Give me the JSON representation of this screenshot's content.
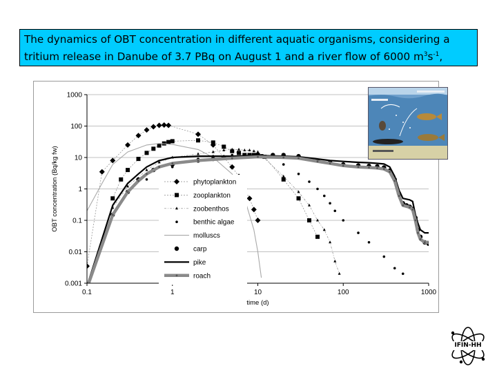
{
  "caption": {
    "line1": "The dynamics of OBT concentration in different aquatic organisms, considering a",
    "line2_pre": "tritium release in Danube of 3.7 PBq on August 1 and a river flow of 6000 m",
    "sup1": "3",
    "mid": "s",
    "sup2": "-1",
    "tail": ","
  },
  "logo_text": "IFIN-HH",
  "colors": {
    "caption_bg": "#00ccff",
    "grid": "#c0c0c0",
    "inset_water": "#4d86b8",
    "inset_sand": "#d7d1a6"
  },
  "chart_data": {
    "type": "line",
    "title": "",
    "xlabel": "time (d)",
    "ylabel": "OBT concentration (Bq/kg fw)",
    "xscale": "log",
    "yscale": "log",
    "xlim": [
      0.1,
      1000
    ],
    "ylim": [
      0.001,
      1000
    ],
    "xticks": [
      "0.1",
      "1",
      "10",
      "100",
      "1000"
    ],
    "yticks": [
      "1000",
      "100",
      "10",
      "1",
      "0.1",
      "0.01",
      "0.001"
    ],
    "grid": "horizontal",
    "legend_position": "lower-left inside",
    "series": [
      {
        "name": "phytoplankton",
        "style": "diamond markers",
        "color": "#000000",
        "points": [
          [
            0.1,
            0.0035
          ],
          [
            0.15,
            3.5
          ],
          [
            0.2,
            8
          ],
          [
            0.3,
            25
          ],
          [
            0.4,
            50
          ],
          [
            0.5,
            75
          ],
          [
            0.6,
            95
          ],
          [
            0.7,
            105
          ],
          [
            0.8,
            108
          ],
          [
            0.9,
            105
          ],
          [
            2,
            55
          ],
          [
            3,
            25
          ],
          [
            4,
            10
          ],
          [
            5,
            5
          ],
          [
            6,
            2.5
          ],
          [
            7,
            1
          ],
          [
            8,
            0.5
          ],
          [
            9,
            0.22
          ],
          [
            10,
            0.1
          ]
        ]
      },
      {
        "name": "zooplankton",
        "style": "square markers",
        "color": "#000000",
        "points": [
          [
            0.2,
            0.5
          ],
          [
            0.25,
            2
          ],
          [
            0.3,
            4
          ],
          [
            0.4,
            9
          ],
          [
            0.5,
            14
          ],
          [
            0.6,
            19
          ],
          [
            0.7,
            24
          ],
          [
            0.8,
            28
          ],
          [
            0.9,
            31
          ],
          [
            1,
            33
          ],
          [
            2,
            35
          ],
          [
            3,
            30
          ],
          [
            4,
            22
          ],
          [
            5,
            16
          ],
          [
            6,
            14
          ],
          [
            7,
            12
          ],
          [
            8,
            12
          ],
          [
            9,
            12
          ],
          [
            10,
            12
          ],
          [
            11,
            11
          ],
          [
            12,
            10.5
          ],
          [
            20,
            2
          ],
          [
            30,
            0.5
          ],
          [
            40,
            0.1
          ],
          [
            50,
            0.03
          ]
        ]
      },
      {
        "name": "zoobenthos",
        "style": "small triangle markers",
        "color": "#000000",
        "points": [
          [
            0.2,
            0.25
          ],
          [
            0.3,
            1.2
          ],
          [
            0.5,
            4
          ],
          [
            0.7,
            7
          ],
          [
            1,
            10
          ],
          [
            2,
            13
          ],
          [
            3,
            15
          ],
          [
            4,
            17
          ],
          [
            5,
            18
          ],
          [
            6,
            18
          ],
          [
            7,
            17
          ],
          [
            8,
            17
          ],
          [
            9,
            16
          ],
          [
            10,
            15
          ],
          [
            20,
            2.5
          ],
          [
            30,
            0.8
          ],
          [
            40,
            0.3
          ],
          [
            50,
            0.1
          ],
          [
            60,
            0.05
          ],
          [
            70,
            0.02
          ],
          [
            80,
            0.005
          ],
          [
            90,
            0.002
          ]
        ]
      },
      {
        "name": "benthic algae",
        "style": "dot markers",
        "color": "#000000",
        "points": [
          [
            0.5,
            2
          ],
          [
            1,
            5
          ],
          [
            2,
            9
          ],
          [
            3,
            11
          ],
          [
            5,
            12
          ],
          [
            7,
            12
          ],
          [
            10,
            12
          ],
          [
            20,
            6
          ],
          [
            30,
            3
          ],
          [
            40,
            1.7
          ],
          [
            50,
            1
          ],
          [
            60,
            0.6
          ],
          [
            70,
            0.35
          ],
          [
            80,
            0.2
          ],
          [
            100,
            0.1
          ],
          [
            150,
            0.04
          ],
          [
            200,
            0.02
          ],
          [
            300,
            0.007
          ],
          [
            400,
            0.003
          ],
          [
            500,
            0.002
          ]
        ]
      },
      {
        "name": "molluscs",
        "style": "thin gray line",
        "color": "#a0a0a0",
        "points": [
          [
            0.1,
            0.2
          ],
          [
            0.15,
            1.5
          ],
          [
            0.2,
            6
          ],
          [
            0.3,
            15
          ],
          [
            0.5,
            25
          ],
          [
            0.7,
            28
          ],
          [
            1,
            26
          ],
          [
            2,
            18
          ],
          [
            3,
            10
          ],
          [
            5,
            3
          ],
          [
            7,
            0.5
          ],
          [
            9,
            0.05
          ],
          [
            10,
            0.01
          ],
          [
            11,
            0.0015
          ]
        ]
      },
      {
        "name": "carp",
        "style": "large dot markers",
        "color": "#000000",
        "points": [
          [
            0.2,
            0.15
          ],
          [
            0.3,
            0.8
          ],
          [
            0.4,
            2
          ],
          [
            0.6,
            4
          ],
          [
            1,
            6
          ],
          [
            2,
            8
          ],
          [
            3,
            9
          ],
          [
            5,
            10
          ],
          [
            7,
            11
          ],
          [
            10,
            12
          ],
          [
            15,
            12
          ],
          [
            20,
            12
          ],
          [
            30,
            11
          ],
          [
            50,
            8
          ],
          [
            70,
            7
          ],
          [
            100,
            6
          ],
          [
            150,
            5.6
          ],
          [
            200,
            5.4
          ],
          [
            250,
            5.2
          ],
          [
            300,
            4.8
          ],
          [
            350,
            3.8
          ],
          [
            400,
            2
          ],
          [
            450,
            0.7
          ],
          [
            500,
            0.35
          ],
          [
            550,
            0.3
          ],
          [
            600,
            0.27
          ],
          [
            650,
            0.23
          ],
          [
            700,
            0.12
          ],
          [
            750,
            0.05
          ],
          [
            800,
            0.03
          ],
          [
            900,
            0.02
          ],
          [
            1000,
            0.018
          ]
        ]
      },
      {
        "name": "pike",
        "style": "thick black line",
        "color": "#000000",
        "points": [
          [
            0.1,
            0.0008
          ],
          [
            0.2,
            0.3
          ],
          [
            0.3,
            1.5
          ],
          [
            0.4,
            3
          ],
          [
            0.5,
            5
          ],
          [
            0.7,
            8
          ],
          [
            1,
            10
          ],
          [
            2,
            11
          ],
          [
            5,
            11
          ],
          [
            10,
            11.5
          ],
          [
            20,
            11
          ],
          [
            30,
            10.5
          ],
          [
            50,
            9
          ],
          [
            70,
            8
          ],
          [
            100,
            7.5
          ],
          [
            150,
            7
          ],
          [
            200,
            6.8
          ],
          [
            250,
            6.5
          ],
          [
            300,
            6.2
          ],
          [
            350,
            5
          ],
          [
            400,
            2.5
          ],
          [
            450,
            0.9
          ],
          [
            500,
            0.5
          ],
          [
            600,
            0.45
          ],
          [
            650,
            0.4
          ],
          [
            700,
            0.15
          ],
          [
            750,
            0.08
          ],
          [
            800,
            0.05
          ],
          [
            900,
            0.04
          ],
          [
            1000,
            0.04
          ]
        ]
      },
      {
        "name": "roach",
        "style": "thick gray line with small markers",
        "color": "#8a8a8a",
        "points": [
          [
            0.1,
            0.0007
          ],
          [
            0.2,
            0.15
          ],
          [
            0.3,
            0.8
          ],
          [
            0.4,
            1.8
          ],
          [
            0.5,
            3
          ],
          [
            0.7,
            5
          ],
          [
            1,
            6.5
          ],
          [
            2,
            8
          ],
          [
            5,
            9.5
          ],
          [
            10,
            10.5
          ],
          [
            20,
            10
          ],
          [
            30,
            9.5
          ],
          [
            50,
            7.5
          ],
          [
            70,
            6.5
          ],
          [
            100,
            5.5
          ],
          [
            150,
            5
          ],
          [
            200,
            4.8
          ],
          [
            250,
            4.6
          ],
          [
            300,
            4.3
          ],
          [
            350,
            3.5
          ],
          [
            400,
            1.8
          ],
          [
            450,
            0.6
          ],
          [
            500,
            0.3
          ],
          [
            600,
            0.26
          ],
          [
            650,
            0.22
          ],
          [
            700,
            0.1
          ],
          [
            750,
            0.04
          ],
          [
            800,
            0.025
          ],
          [
            900,
            0.02
          ],
          [
            1000,
            0.02
          ]
        ]
      }
    ]
  }
}
